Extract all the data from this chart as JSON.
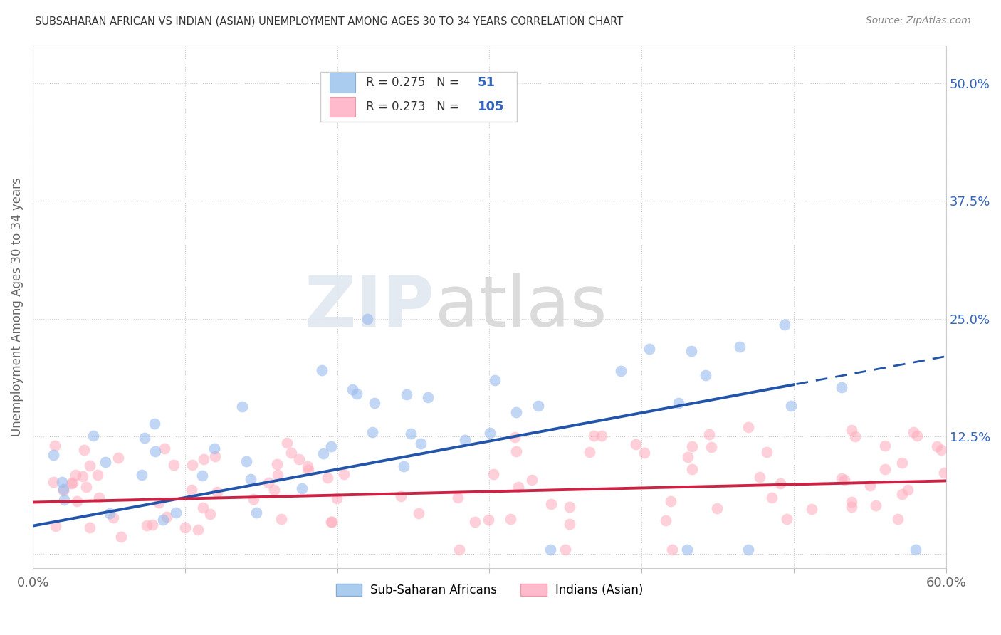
{
  "title": "SUBSAHARAN AFRICAN VS INDIAN (ASIAN) UNEMPLOYMENT AMONG AGES 30 TO 34 YEARS CORRELATION CHART",
  "source": "Source: ZipAtlas.com",
  "ylabel": "Unemployment Among Ages 30 to 34 years",
  "xlim": [
    0.0,
    0.6
  ],
  "ylim": [
    -0.015,
    0.54
  ],
  "yticks": [
    0.0,
    0.125,
    0.25,
    0.375,
    0.5
  ],
  "ytick_labels_right": [
    "",
    "12.5%",
    "25.0%",
    "37.5%",
    "50.0%"
  ],
  "xticks": [
    0.0,
    0.1,
    0.2,
    0.3,
    0.4,
    0.5,
    0.6
  ],
  "xtick_labels": [
    "0.0%",
    "",
    "",
    "",
    "",
    "",
    "60.0%"
  ],
  "grid_color": "#d0d0d0",
  "background_color": "#ffffff",
  "blue_scatter_color": "#99bbee",
  "pink_scatter_color": "#ffaabb",
  "blue_line_color": "#2255aa",
  "pink_line_color": "#cc2244",
  "blue_line_solid_end": 0.5,
  "blue_slope": 0.3,
  "blue_intercept": 0.03,
  "pink_slope": 0.038,
  "pink_intercept": 0.055,
  "legend_R_blue": "0.275",
  "legend_N_blue": "51",
  "legend_R_pink": "0.273",
  "legend_N_pink": "105",
  "legend_label_blue": "Sub-Saharan Africans",
  "legend_label_pink": "Indians (Asian)",
  "right_tick_color": "#3366bb",
  "title_color": "#333333",
  "source_color": "#888888",
  "axis_label_color": "#666666"
}
